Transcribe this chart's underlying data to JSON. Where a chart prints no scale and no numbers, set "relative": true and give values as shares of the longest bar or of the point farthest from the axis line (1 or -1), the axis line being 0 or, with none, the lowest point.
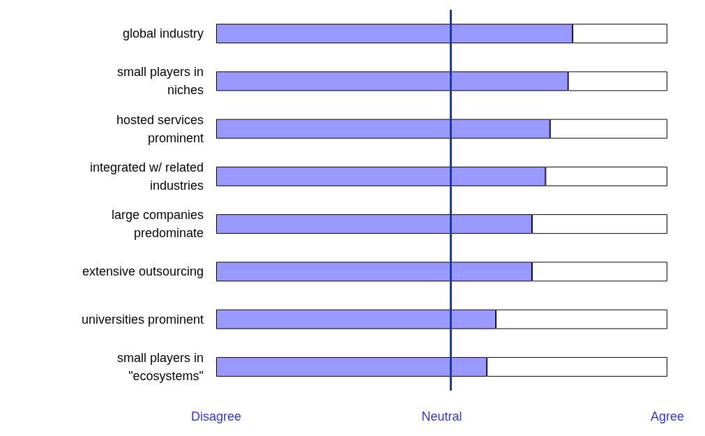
{
  "chart_data": {
    "type": "bar",
    "orientation": "horizontal",
    "stacked": true,
    "categories": [
      "global industry",
      "small players in\nniches",
      "hosted services\nprominent",
      "integrated w/ related\nindustries",
      "large companies\npredominate",
      "extensive outsourcing",
      "universities prominent",
      "small players in\n\"ecosystems\""
    ],
    "series": [
      {
        "color": "#9999ff",
        "values": [
          0.79,
          0.78,
          0.74,
          0.73,
          0.7,
          0.7,
          0.62,
          0.6
        ]
      },
      {
        "color": "#ffffff",
        "values": [
          0.21,
          0.22,
          0.26,
          0.27,
          0.3,
          0.3,
          0.38,
          0.4
        ]
      }
    ],
    "relative": true,
    "annotations": [
      "Disagree",
      "Neutral",
      "Agree"
    ],
    "ref_lines": [
      {
        "axis": "x",
        "value": 0.52,
        "label": null,
        "color": "#1f3a9e"
      }
    ],
    "data_labels": false
  }
}
